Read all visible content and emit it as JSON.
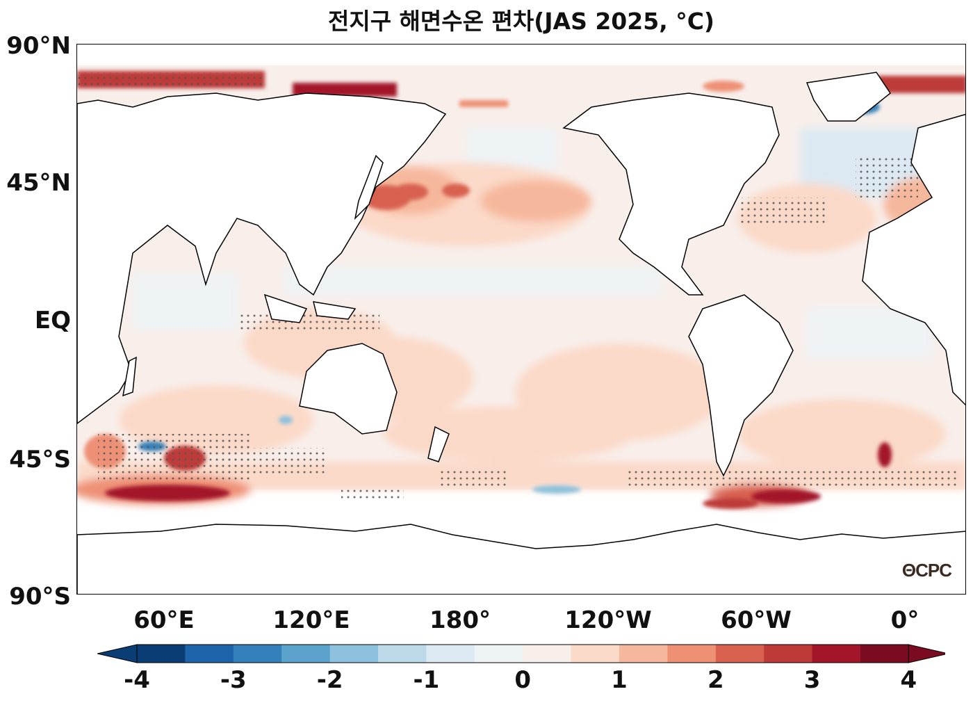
{
  "title": "전지구 해면수온 편차(JAS 2025, °C)",
  "lat_ticks": [
    "90°N",
    "45°N",
    "EQ",
    "45°S",
    "90°S"
  ],
  "lon_ticks": [
    "60°E",
    "120°E",
    "180°",
    "120°W",
    "60°W",
    "0°"
  ],
  "colorbar": {
    "tick_labels": [
      "-4",
      "-3",
      "-2",
      "-1",
      "0",
      "1",
      "2",
      "3",
      "4"
    ],
    "colors": [
      "#0b3d75",
      "#1e64ab",
      "#3480ba",
      "#5ba2cc",
      "#8dc1dd",
      "#bcd8e9",
      "#dde9f2",
      "#eef3f6",
      "#f8efeb",
      "#fbd9c8",
      "#f6b89c",
      "#ee9074",
      "#d8614f",
      "#bd3a37",
      "#a3162a",
      "#7a0b21"
    ]
  },
  "credit": "ΘCPC",
  "stipple_note": ""
}
